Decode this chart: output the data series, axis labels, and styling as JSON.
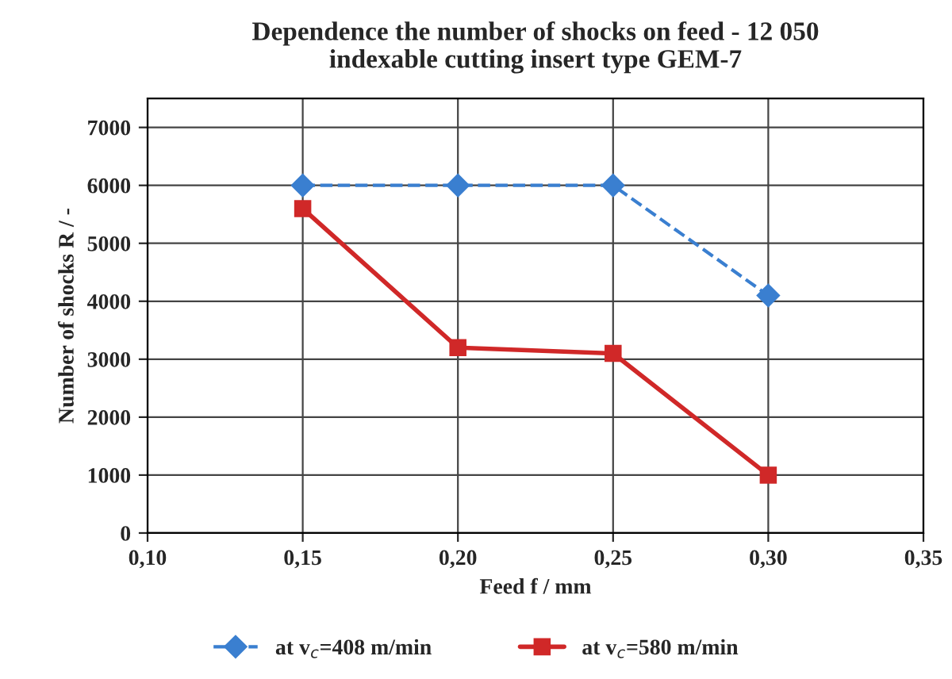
{
  "chart_data": {
    "type": "line",
    "title": "Dependence the number of shocks on feed - 12 050\nindexable cutting insert type GEM-7",
    "xlabel": "Feed f / mm",
    "ylabel": "Number of shocks R / -",
    "x": [
      0.15,
      0.2,
      0.25,
      0.3
    ],
    "series": [
      {
        "name": "at v$_{c}$=408 m/min",
        "color": "#3a7fd0",
        "values": [
          6000,
          6000,
          6000,
          4100
        ],
        "marker": "diamond",
        "line_style": "dashed"
      },
      {
        "name": "at v$_{c}$=580 m/min",
        "color": "#d02828",
        "values": [
          5600,
          3200,
          3100,
          1000
        ],
        "marker": "square",
        "line_style": "solid"
      }
    ],
    "xlim": [
      0.1,
      0.35
    ],
    "xticks": [
      {
        "value": 0.1,
        "label": "0,10"
      },
      {
        "value": 0.15,
        "label": "0,15"
      },
      {
        "value": 0.2,
        "label": "0,20"
      },
      {
        "value": 0.25,
        "label": "0,25"
      },
      {
        "value": 0.3,
        "label": "0,30"
      },
      {
        "value": 0.35,
        "label": "0,35"
      }
    ],
    "ylim": [
      0,
      7500
    ],
    "yticks": [
      0,
      1000,
      2000,
      3000,
      4000,
      5000,
      6000,
      7000
    ],
    "grid": true,
    "legend": "bottom"
  }
}
